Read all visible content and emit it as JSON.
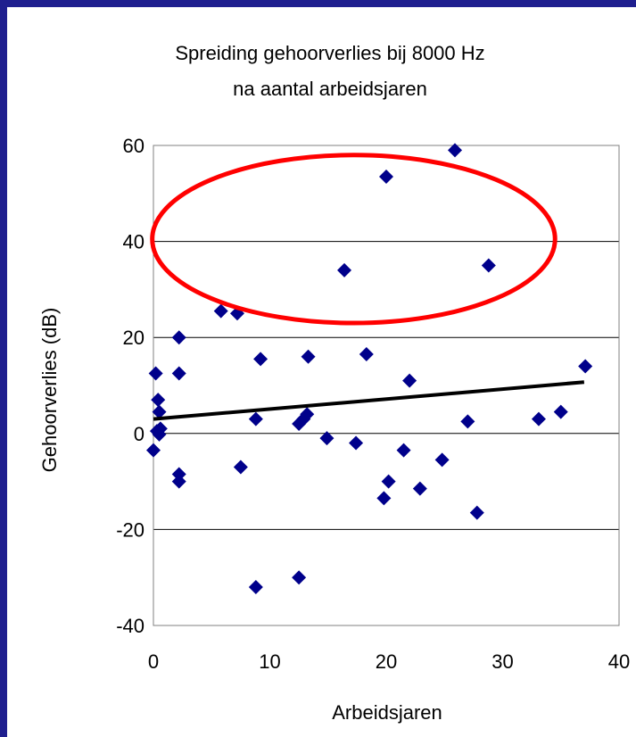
{
  "chart_data": {
    "type": "scatter",
    "title": [
      "Spreiding gehoorverlies bij 8000 Hz",
      "na aantal arbeidsjaren"
    ],
    "xlabel": "Arbeidsjaren",
    "ylabel": "Gehoorverlies (dB)",
    "xlim": [
      0,
      40
    ],
    "ylim": [
      -40,
      60
    ],
    "xticks": [
      "0",
      "10",
      "20",
      "30",
      "40"
    ],
    "yticks": [
      "60",
      "40",
      "20",
      "0",
      "-20",
      "-40"
    ],
    "gridlines": "horizontal",
    "marker_color": "#00008b",
    "points": [
      {
        "x": 0.0,
        "y": -3.5
      },
      {
        "x": 0.2,
        "y": 12.5
      },
      {
        "x": 0.4,
        "y": 7.0
      },
      {
        "x": 0.5,
        "y": 4.5
      },
      {
        "x": 0.3,
        "y": 0.5
      },
      {
        "x": 0.6,
        "y": 1.0
      },
      {
        "x": 0.5,
        "y": -0.2
      },
      {
        "x": 2.2,
        "y": 20.0
      },
      {
        "x": 2.2,
        "y": 12.5
      },
      {
        "x": 2.2,
        "y": -8.5
      },
      {
        "x": 2.2,
        "y": -10.0
      },
      {
        "x": 5.8,
        "y": 25.5
      },
      {
        "x": 7.2,
        "y": 25.0
      },
      {
        "x": 7.5,
        "y": -7.0
      },
      {
        "x": 8.8,
        "y": -32.0
      },
      {
        "x": 8.8,
        "y": 3.0
      },
      {
        "x": 9.2,
        "y": 15.5
      },
      {
        "x": 12.5,
        "y": -30.0
      },
      {
        "x": 12.5,
        "y": 2.0
      },
      {
        "x": 12.9,
        "y": 3.0
      },
      {
        "x": 13.2,
        "y": 4.0
      },
      {
        "x": 13.3,
        "y": 16.0
      },
      {
        "x": 14.9,
        "y": -1.0
      },
      {
        "x": 16.4,
        "y": 34.0
      },
      {
        "x": 17.4,
        "y": -2.0
      },
      {
        "x": 18.3,
        "y": 16.5
      },
      {
        "x": 19.8,
        "y": -13.5
      },
      {
        "x": 20.0,
        "y": 53.5
      },
      {
        "x": 20.2,
        "y": -10.0
      },
      {
        "x": 21.5,
        "y": -3.5
      },
      {
        "x": 22.0,
        "y": 11.0
      },
      {
        "x": 22.9,
        "y": -11.5
      },
      {
        "x": 24.8,
        "y": -5.5
      },
      {
        "x": 25.9,
        "y": 59.0
      },
      {
        "x": 27.0,
        "y": 2.5
      },
      {
        "x": 27.8,
        "y": -16.5
      },
      {
        "x": 28.8,
        "y": 35.0
      },
      {
        "x": 33.1,
        "y": 3.0
      },
      {
        "x": 35.0,
        "y": 4.5
      },
      {
        "x": 37.1,
        "y": 14.0
      }
    ],
    "trendline": {
      "x": [
        0,
        37
      ],
      "y": [
        3.0,
        10.7
      ],
      "color": "#000000"
    },
    "highlight_ellipse": {
      "center": [
        17.2,
        40.5
      ],
      "radius_x": 17.3,
      "radius_y": 17.5,
      "color": "#ff0000"
    }
  }
}
